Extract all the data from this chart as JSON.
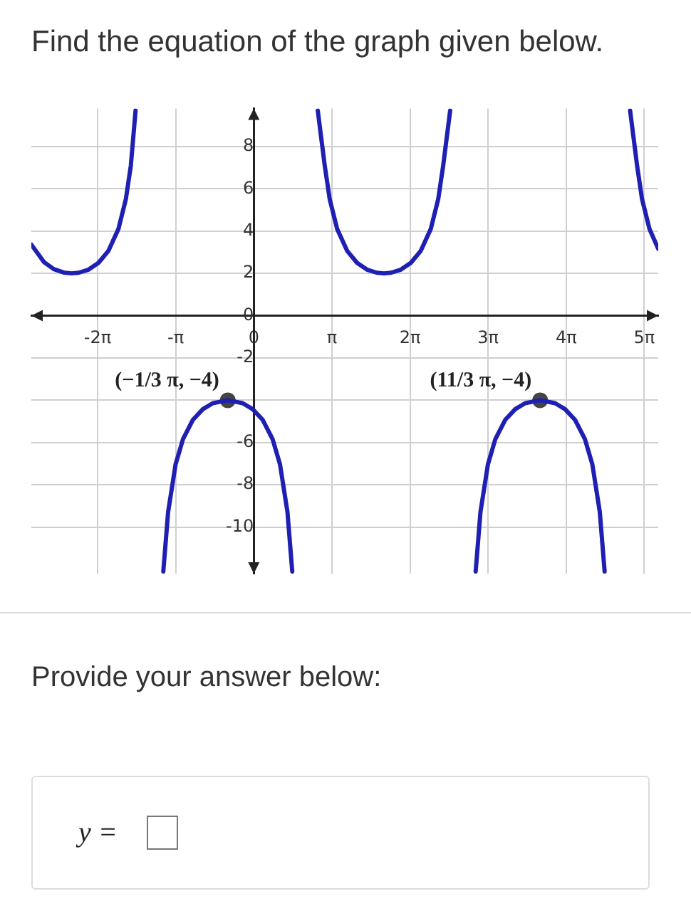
{
  "chart_data": {
    "type": "line",
    "title": "Find the equation of the graph given below.",
    "xlim": [
      -8.95,
      16.27
    ],
    "ylim": [
      -12.2,
      9.8
    ],
    "xticks": [
      {
        "value": -6.283,
        "label": "-2π"
      },
      {
        "value": -3.142,
        "label": "-π"
      },
      0,
      {
        "value": 3.142,
        "label": "π"
      },
      {
        "value": 6.283,
        "label": "2π"
      },
      {
        "value": 9.425,
        "label": "3π"
      },
      {
        "value": 12.566,
        "label": "4π"
      },
      {
        "value": 15.708,
        "label": "5π"
      }
    ],
    "yticks": [
      -10,
      -8,
      -6,
      {
        "value": -4,
        "label": null
      },
      -2,
      0,
      2,
      4,
      6,
      8
    ],
    "grid": true,
    "legend": false,
    "series": [
      {
        "type": "line",
        "color": "#1f1fb4",
        "marker": "none",
        "x": [
          -8.95,
          -8.447,
          -8.047,
          -7.647,
          -7.33,
          -7.047,
          -6.647,
          -6.247,
          -5.847,
          -5.447,
          -5.147,
          -4.947,
          -4.757,
          -4.3,
          -3.641,
          -3.447,
          -3.147,
          -2.847,
          -2.447,
          -2.047,
          -1.647,
          -1.047,
          -0.447,
          -0.047,
          0.353,
          0.753,
          1.053,
          1.353,
          1.547,
          2.0,
          2.573,
          2.853,
          3.053,
          3.353,
          3.753,
          4.153,
          4.553,
          4.953,
          5.236,
          5.519,
          5.919,
          6.319,
          6.719,
          7.119,
          7.419,
          7.619,
          7.899,
          8.4,
          8.925,
          9.119,
          9.419,
          9.719,
          10.119,
          10.519,
          10.919,
          11.519,
          12.119,
          12.519,
          12.919,
          13.319,
          13.619,
          13.919,
          14.113,
          14.6,
          15.139,
          15.419,
          15.619,
          15.919,
          16.27
        ],
        "values": [
          3.36,
          2.54,
          2.2,
          2.04,
          2,
          2.03,
          2.18,
          2.5,
          3.07,
          4.1,
          5.51,
          7.1,
          9.7,
          null,
          -12.1,
          -9.28,
          -7.03,
          -5.83,
          -4.92,
          -4.42,
          -4.14,
          -4,
          -4.14,
          -4.42,
          -4.92,
          -5.83,
          -7.03,
          -9.28,
          -12.1,
          null,
          9.7,
          7.1,
          5.51,
          4.1,
          3.07,
          2.5,
          2.18,
          2.03,
          2,
          2.03,
          2.18,
          2.5,
          3.07,
          4.1,
          5.51,
          7.1,
          9.7,
          null,
          -12.1,
          -9.28,
          -7.03,
          -5.83,
          -4.92,
          -4.42,
          -4.14,
          -4,
          -4.14,
          -4.42,
          -4.92,
          -5.83,
          -7.03,
          -9.28,
          -12.1,
          null,
          9.7,
          7.1,
          5.51,
          4.1,
          3.16
        ]
      },
      {
        "type": "scatter",
        "color": "#444444",
        "marker": "circle",
        "x": [
          -1.047,
          11.519
        ],
        "values": [
          -4,
          -4
        ]
      }
    ],
    "annotations": [
      {
        "text": "(−1/3 π, −4)",
        "x": -1.047,
        "y": -4
      },
      {
        "text": "(11/3 π, −4)",
        "x": 11.519,
        "y": -4
      },
      "Provide your answer below:",
      "y ="
    ]
  }
}
